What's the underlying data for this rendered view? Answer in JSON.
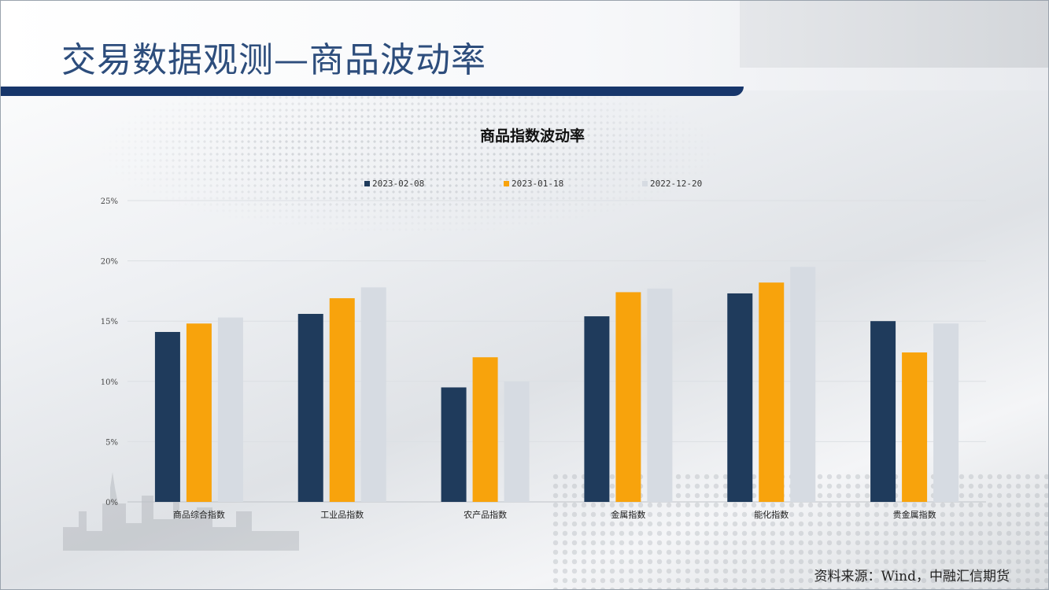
{
  "page": {
    "title": "交易数据观测—商品波动率",
    "source": "资料来源：Wind，中融汇信期货"
  },
  "colors": {
    "title": "#2d4d7c",
    "bar_band": "#17366b"
  },
  "chart_data": {
    "type": "bar",
    "title": "商品指数波动率",
    "categories": [
      "商品综合指数",
      "工业品指数",
      "农产品指数",
      "金属指数",
      "能化指数",
      "贵金属指数"
    ],
    "series": [
      {
        "name": "2023-02-08",
        "color": "#1f3b5c",
        "values": [
          14.1,
          15.6,
          9.5,
          15.4,
          17.3,
          15.0
        ]
      },
      {
        "name": "2023-01-18",
        "color": "#f8a30c",
        "values": [
          14.8,
          16.9,
          12.0,
          17.4,
          18.2,
          12.4
        ]
      },
      {
        "name": "2022-12-20",
        "color": "#d6dbe2",
        "values": [
          15.3,
          17.8,
          10.0,
          17.7,
          19.5,
          14.8
        ]
      }
    ],
    "ylim": [
      0,
      25
    ],
    "yticks": [
      "0%",
      "5%",
      "10%",
      "15%",
      "20%",
      "25%"
    ],
    "grid": true,
    "legend": "top-center"
  }
}
